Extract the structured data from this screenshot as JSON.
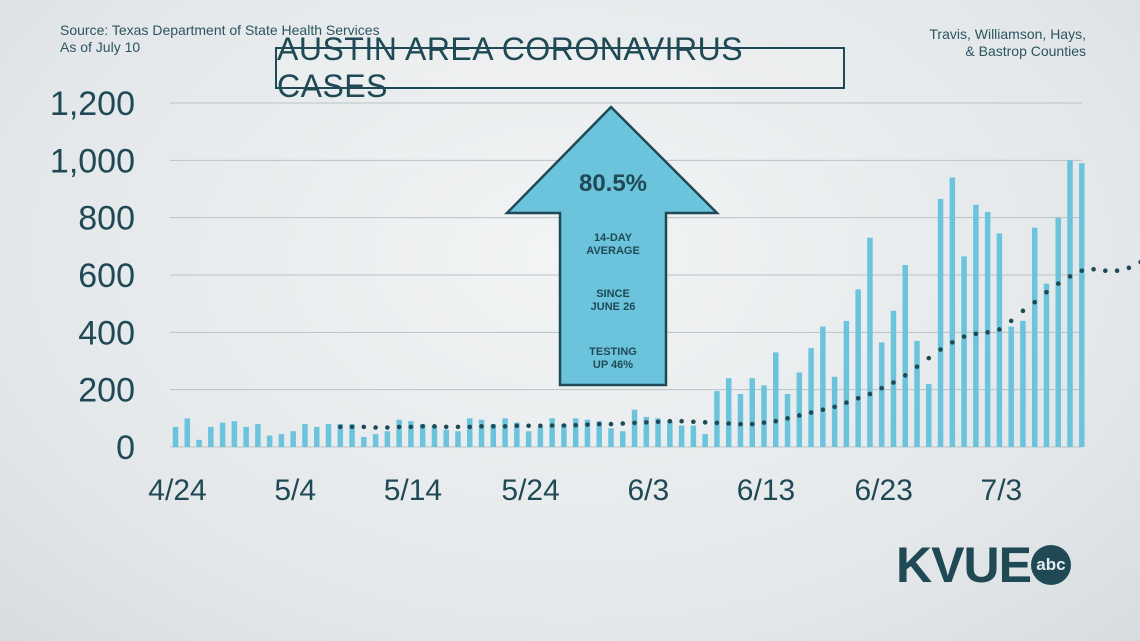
{
  "source_line1": "Source: Texas Department of State Health Services",
  "source_line2": "As of July 10",
  "counties_line1": "Travis, Williamson, Hays,",
  "counties_line2": "& Bastrop Counties",
  "title": "AUSTIN AREA CORONAVIRUS CASES",
  "callout": {
    "percent": "80.5%",
    "line1": "14-DAY",
    "line2": "AVERAGE",
    "line3": "SINCE",
    "line4": "JUNE 26",
    "line5": "TESTING",
    "line6": "UP 46%"
  },
  "logo": {
    "text": "KVUE",
    "badge": "abc"
  },
  "colors": {
    "bar": "#6bc3dc",
    "dot": "#1f4a55",
    "text": "#1f4a55",
    "grid": "#b9c2c6"
  },
  "chart_data": {
    "type": "bar",
    "title": "AUSTIN AREA CORONAVIRUS CASES",
    "ylim": [
      0,
      1200
    ],
    "yticks": [
      "0",
      "200",
      "400",
      "600",
      "800",
      "1,000",
      "1,200"
    ],
    "ytick_values": [
      0,
      200,
      400,
      600,
      800,
      1000,
      1200
    ],
    "xtick_labels": [
      "4/24",
      "5/4",
      "5/14",
      "5/24",
      "6/3",
      "6/13",
      "6/23",
      "7/3"
    ],
    "xtick_index": [
      0,
      10,
      20,
      30,
      40,
      50,
      60,
      70
    ],
    "grid": true,
    "series": [
      {
        "type": "bar",
        "values": [
          70,
          100,
          25,
          70,
          85,
          90,
          70,
          80,
          40,
          45,
          55,
          80,
          70,
          80,
          80,
          80,
          35,
          45,
          55,
          95,
          90,
          80,
          75,
          60,
          55,
          100,
          95,
          80,
          100,
          85,
          55,
          70,
          100,
          80,
          100,
          95,
          90,
          65,
          55,
          130,
          105,
          100,
          90,
          75,
          75,
          45,
          195,
          240,
          185,
          240,
          215,
          330,
          185,
          260,
          345,
          420,
          245,
          440,
          550,
          730,
          365,
          475,
          635,
          370,
          220,
          865,
          940,
          665,
          845,
          820,
          745,
          420,
          440,
          765,
          570,
          800,
          1000,
          990
        ]
      },
      {
        "type": "dots",
        "start_index": 14,
        "values": [
          70,
          70,
          70,
          68,
          68,
          70,
          70,
          72,
          72,
          70,
          70,
          70,
          72,
          72,
          72,
          74,
          74,
          74,
          75,
          75,
          76,
          78,
          80,
          80,
          82,
          84,
          86,
          88,
          90,
          90,
          88,
          86,
          84,
          82,
          80,
          80,
          85,
          90,
          100,
          110,
          120,
          130,
          140,
          155,
          170,
          185,
          205,
          225,
          250,
          280,
          310,
          340,
          365,
          385,
          395,
          400,
          410,
          440,
          475,
          505,
          540,
          570,
          595,
          615,
          620,
          615,
          615,
          625,
          645,
          665,
          700
        ]
      }
    ]
  }
}
